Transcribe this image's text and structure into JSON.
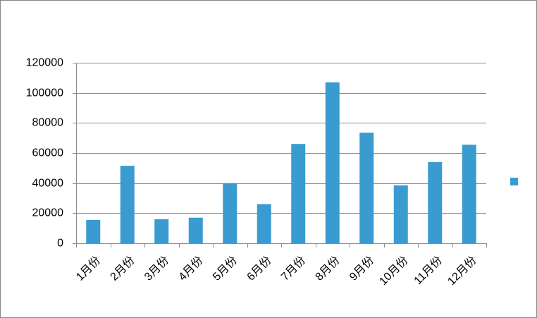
{
  "chart_data": {
    "type": "bar",
    "categories": [
      "1月份",
      "2月份",
      "3月份",
      "4月份",
      "5月份",
      "6月份",
      "7月份",
      "8月份",
      "9月份",
      "10月份",
      "11月份",
      "12月份"
    ],
    "values": [
      15500,
      51500,
      16000,
      17000,
      40000,
      26000,
      66000,
      107000,
      73500,
      38500,
      54000,
      65500
    ],
    "color": "#3a9bd1",
    "ylim": [
      0,
      120000
    ],
    "yticks": [
      0,
      20000,
      40000,
      60000,
      80000,
      100000,
      120000
    ],
    "grid": true,
    "legend": "right"
  }
}
